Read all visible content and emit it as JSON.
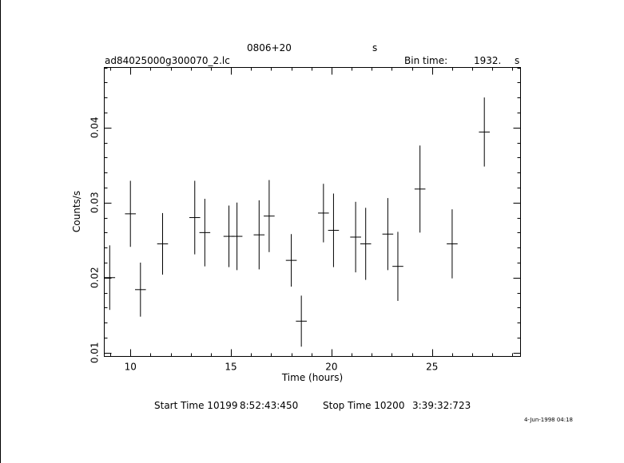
{
  "header": {
    "source": "0806+20",
    "unit_s": "s",
    "filename": "ad84025000g300070_2.lc",
    "bin_label": "Bin time:",
    "bin_value": "1932.",
    "bin_unit": "s"
  },
  "footer": {
    "start_label": "Start Time 10199",
    "start_time": "8:52:43:450",
    "stop_label": "Stop Time 10200",
    "stop_time": "3:39:32:723",
    "stamp": "4-Jun-1998 04:18"
  },
  "chart_data": {
    "type": "scatter",
    "xlabel": "Time (hours)",
    "ylabel": "Counts/s",
    "xlim": [
      8.7,
      29.4
    ],
    "ylim": [
      0.0095,
      0.048
    ],
    "xticks": [
      10,
      15,
      20,
      25
    ],
    "yticks": [
      0.01,
      0.02,
      0.03,
      0.04
    ],
    "xtick_labels": [
      "10",
      "15",
      "20",
      "25"
    ],
    "ytick_labels": [
      "0.01",
      "0.02",
      "0.03",
      "0.04"
    ],
    "grid": false,
    "series": [
      {
        "x": [
          8.97,
          10.0,
          10.5,
          11.6,
          13.2,
          13.7,
          14.9,
          15.3,
          16.4,
          16.9,
          18.0,
          18.5,
          19.6,
          20.1,
          21.2,
          21.7,
          22.8,
          23.3,
          24.4,
          26.0,
          27.6
        ],
        "y": [
          0.02,
          0.0285,
          0.0184,
          0.0245,
          0.028,
          0.026,
          0.0255,
          0.0255,
          0.0257,
          0.0282,
          0.0223,
          0.0142,
          0.0286,
          0.0263,
          0.0254,
          0.0245,
          0.0258,
          0.0215,
          0.0318,
          0.0245,
          0.0394
        ],
        "yerr": [
          0.0043,
          0.0044,
          0.0036,
          0.0041,
          0.0049,
          0.0045,
          0.0041,
          0.0045,
          0.0046,
          0.0048,
          0.0035,
          0.0034,
          0.0039,
          0.0049,
          0.0047,
          0.0048,
          0.0048,
          0.0046,
          0.0058,
          0.0046,
          0.0046
        ],
        "xerr": [
          0.27,
          0.27,
          0.27,
          0.27,
          0.27,
          0.27,
          0.27,
          0.27,
          0.27,
          0.27,
          0.27,
          0.27,
          0.27,
          0.27,
          0.27,
          0.27,
          0.27,
          0.27,
          0.27,
          0.27,
          0.27
        ]
      }
    ]
  }
}
